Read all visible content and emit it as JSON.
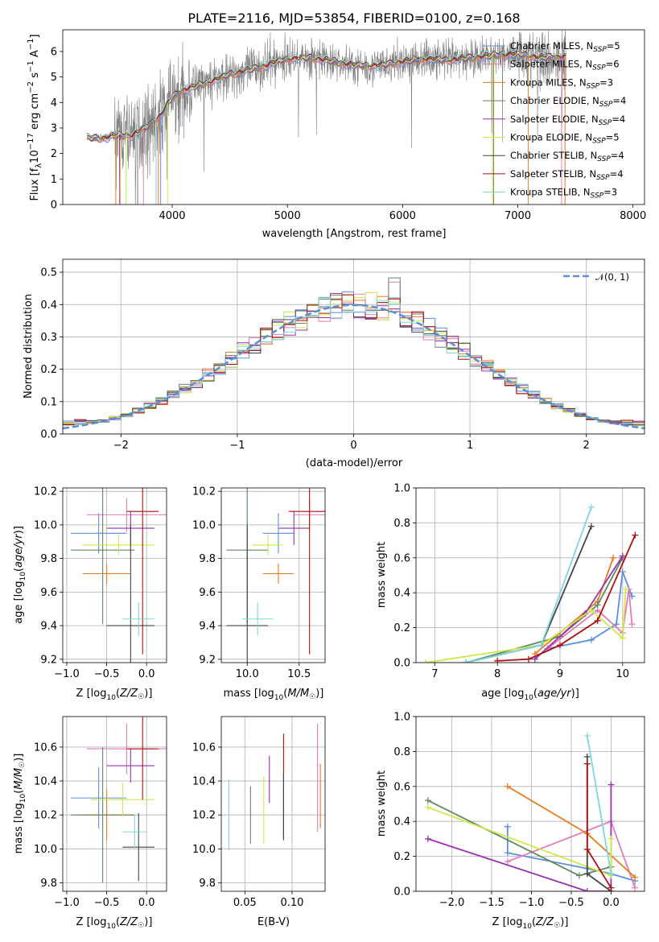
{
  "colors": {
    "Chabrier MILES": "#5b8ee0",
    "Salpeter MILES": "#e57ab8",
    "Kroupa MILES": "#e67e22",
    "Chabrier ELODIE": "#5f8a5f",
    "Salpeter ELODIE": "#9b30b0",
    "Kroupa ELODIE": "#cde84a",
    "Chabrier STELIB": "#444444",
    "Salpeter STELIB": "#b01010",
    "Kroupa STELIB": "#7dd8dc",
    "data": "#808080"
  },
  "chart_data": [
    {
      "type": "line",
      "title": "PLATE=2116, MJD=53854, FIBERID=0100, z=0.168",
      "xlabel": "wavelength [Angstrom, rest frame]",
      "ylabel": "Flux [f_λ 10^-17 erg cm^-2 s^-1 A^-1]",
      "xlim": [
        3050,
        8100
      ],
      "ylim": [
        0,
        6.85
      ],
      "xticks": [
        4000,
        5000,
        6000,
        7000,
        8000
      ],
      "yticks": [
        0,
        1,
        2,
        3,
        4,
        5,
        6
      ],
      "grid": false,
      "legend_position": "right",
      "legend": [
        {
          "model": "Chabrier MILES",
          "label": "Chabrier MILES, N_SSP=5"
        },
        {
          "model": "Salpeter MILES",
          "label": "Salpeter MILES, N_SSP=6"
        },
        {
          "model": "Kroupa MILES",
          "label": "Kroupa MILES, N_SSP=3"
        },
        {
          "model": "Chabrier ELODIE",
          "label": "Chabrier ELODIE, N_SSP=4"
        },
        {
          "model": "Salpeter ELODIE",
          "label": "Salpeter ELODIE, N_SSP=4"
        },
        {
          "model": "Kroupa ELODIE",
          "label": "Kroupa ELODIE, N_SSP=5"
        },
        {
          "model": "Chabrier STELIB",
          "label": "Chabrier STELIB, N_SSP=4"
        },
        {
          "model": "Salpeter STELIB",
          "label": "Salpeter STELIB, N_SSP=4"
        },
        {
          "model": "Kroupa STELIB",
          "label": "Kroupa STELIB, N_SSP=3"
        }
      ],
      "continuum": [
        [
          3260,
          2.6
        ],
        [
          3400,
          2.6
        ],
        [
          3500,
          2.7
        ],
        [
          3650,
          2.7
        ],
        [
          3800,
          3.1
        ],
        [
          3900,
          3.5
        ],
        [
          4000,
          4.2
        ],
        [
          4100,
          4.5
        ],
        [
          4300,
          4.75
        ],
        [
          4500,
          5.1
        ],
        [
          4700,
          5.3
        ],
        [
          4850,
          5.5
        ],
        [
          5000,
          5.7
        ],
        [
          5200,
          5.75
        ],
        [
          5400,
          5.6
        ],
        [
          5600,
          5.45
        ],
        [
          5800,
          5.45
        ],
        [
          6000,
          5.6
        ],
        [
          6200,
          5.7
        ],
        [
          6400,
          5.65
        ],
        [
          6600,
          5.75
        ],
        [
          6800,
          5.85
        ],
        [
          7000,
          5.9
        ],
        [
          7200,
          5.75
        ],
        [
          7420,
          5.8
        ]
      ]
    },
    {
      "type": "area",
      "xlabel": "(data-model)/error",
      "ylabel": "Normed distribution",
      "xlim": [
        -2.5,
        2.5
      ],
      "ylim": [
        0,
        0.54
      ],
      "xticks": [
        -2,
        -1,
        0,
        1,
        2
      ],
      "yticks": [
        0.0,
        0.1,
        0.2,
        0.3,
        0.4,
        0.5
      ],
      "grid": true,
      "legend_position": "top-right",
      "gaussian_label": "𝒩(0, 1)",
      "bin_width": 0.1
    },
    {
      "type": "scatter",
      "xlabel": "Z [log10(Z/Z☉)]",
      "ylabel": "age [log10(age/yr)]",
      "xlim": [
        -1.05,
        0.25
      ],
      "ylim": [
        9.18,
        10.22
      ],
      "xticks": [
        -1.0,
        -0.5,
        0.0
      ],
      "yticks": [
        9.2,
        9.4,
        9.6,
        9.8,
        10.0,
        10.2
      ],
      "grid": true,
      "points": [
        {
          "model": "Chabrier MILES",
          "x": -0.6,
          "xerr": 0.35,
          "y": 9.95,
          "yerr": 0.12
        },
        {
          "model": "Salpeter MILES",
          "x": -0.25,
          "xerr": 0.5,
          "y": 10.06,
          "yerr": 0.1
        },
        {
          "model": "Kroupa MILES",
          "x": -0.5,
          "xerr": 0.3,
          "y": 9.71,
          "yerr": 0.06
        },
        {
          "model": "Chabrier ELODIE",
          "x": -0.55,
          "xerr": 0.4,
          "y": 9.85,
          "yerr": 0.44
        },
        {
          "model": "Salpeter ELODIE",
          "x": -0.2,
          "xerr": 0.3,
          "y": 9.98,
          "yerr": 0.1
        },
        {
          "model": "Kroupa ELODIE",
          "x": -0.35,
          "xerr": 0.45,
          "y": 9.88,
          "yerr": 0.06
        },
        {
          "model": "Chabrier STELIB",
          "x": -0.2,
          "xerr": 0.3,
          "y": 9.4,
          "yerr": 0.6
        },
        {
          "model": "Salpeter STELIB",
          "x": -0.05,
          "xerr": 0.2,
          "y": 10.08,
          "yerr": 0.85
        },
        {
          "model": "Kroupa STELIB",
          "x": -0.1,
          "xerr": 0.2,
          "y": 9.44,
          "yerr": 0.1
        }
      ]
    },
    {
      "type": "scatter",
      "xlabel": "mass [log10(M/M☉)]",
      "ylabel": "",
      "xlim": [
        9.75,
        10.75
      ],
      "ylim": [
        9.18,
        10.22
      ],
      "xticks": [
        10.0,
        10.5
      ],
      "yticks": [
        9.2,
        9.4,
        9.6,
        9.8,
        10.0,
        10.2
      ],
      "grid": true,
      "points": [
        {
          "model": "Chabrier MILES",
          "x": 10.3,
          "xerr": 0.15,
          "y": 9.95,
          "yerr": 0.12
        },
        {
          "model": "Salpeter MILES",
          "x": 10.6,
          "xerr": 0.15,
          "y": 10.06,
          "yerr": 0.1
        },
        {
          "model": "Kroupa MILES",
          "x": 10.3,
          "xerr": 0.15,
          "y": 9.71,
          "yerr": 0.06
        },
        {
          "model": "Chabrier ELODIE",
          "x": 10.0,
          "xerr": 0.2,
          "y": 9.85,
          "yerr": 0.44
        },
        {
          "model": "Salpeter ELODIE",
          "x": 10.45,
          "xerr": 0.15,
          "y": 9.98,
          "yerr": 0.1
        },
        {
          "model": "Kroupa ELODIE",
          "x": 10.2,
          "xerr": 0.15,
          "y": 9.88,
          "yerr": 0.06
        },
        {
          "model": "Chabrier STELIB",
          "x": 10.0,
          "xerr": 0.2,
          "y": 9.4,
          "yerr": 0.6
        },
        {
          "model": "Salpeter STELIB",
          "x": 10.6,
          "xerr": 0.2,
          "y": 10.08,
          "yerr": 0.85
        },
        {
          "model": "Kroupa STELIB",
          "x": 10.1,
          "xerr": 0.15,
          "y": 9.44,
          "yerr": 0.1
        }
      ]
    },
    {
      "type": "line",
      "xlabel": "age [log10(age/yr)]",
      "ylabel": "mass weight",
      "xlim": [
        6.7,
        10.35
      ],
      "ylim": [
        0,
        1.0
      ],
      "xticks": [
        7,
        8,
        9,
        10
      ],
      "yticks": [
        0.0,
        0.2,
        0.4,
        0.6,
        0.8,
        1.0
      ],
      "grid": true,
      "series": [
        {
          "model": "Chabrier MILES",
          "x": [
            8.8,
            9.5,
            9.9,
            10.0,
            10.15
          ],
          "y": [
            0.08,
            0.13,
            0.22,
            0.52,
            0.38
          ]
        },
        {
          "model": "Salpeter MILES",
          "x": [
            8.8,
            9.6,
            10.0,
            10.1,
            10.15
          ],
          "y": [
            0.08,
            0.3,
            0.17,
            0.42,
            0.22
          ]
        },
        {
          "model": "Kroupa MILES",
          "x": [
            8.6,
            9.6,
            9.85
          ],
          "y": [
            0.05,
            0.35,
            0.6
          ]
        },
        {
          "model": "Chabrier ELODIE",
          "x": [
            7.5,
            9.0,
            9.6,
            10.0
          ],
          "y": [
            0.0,
            0.15,
            0.33,
            0.6
          ]
        },
        {
          "model": "Salpeter ELODIE",
          "x": [
            8.6,
            9.4,
            10.0
          ],
          "y": [
            0.02,
            0.28,
            0.61
          ]
        },
        {
          "model": "Kroupa ELODIE",
          "x": [
            6.85,
            8.7,
            9.5,
            10.0,
            10.05
          ],
          "y": [
            0.0,
            0.1,
            0.3,
            0.14,
            0.42
          ]
        },
        {
          "model": "Chabrier STELIB",
          "x": [
            7.5,
            8.7,
            9.5
          ],
          "y": [
            0.0,
            0.1,
            0.78
          ]
        },
        {
          "model": "Salpeter STELIB",
          "x": [
            8.0,
            8.5,
            9.0,
            9.6,
            10.2
          ],
          "y": [
            0.01,
            0.02,
            0.1,
            0.24,
            0.73
          ]
        },
        {
          "model": "Kroupa STELIB",
          "x": [
            7.5,
            8.7,
            9.5
          ],
          "y": [
            0.0,
            0.1,
            0.89
          ]
        }
      ]
    },
    {
      "type": "scatter",
      "xlabel": "Z [log10(Z/Z☉)]",
      "ylabel": "mass [log10(M/M☉)]",
      "xlim": [
        -1.05,
        0.25
      ],
      "ylim": [
        9.75,
        10.78
      ],
      "xticks": [
        -1.0,
        -0.5,
        0.0
      ],
      "yticks": [
        9.8,
        10.0,
        10.2,
        10.4,
        10.6
      ],
      "grid": true,
      "points": [
        {
          "model": "Chabrier MILES",
          "x": -0.6,
          "xerr": 0.35,
          "y": 10.3,
          "yerr": 0.18
        },
        {
          "model": "Salpeter MILES",
          "x": -0.25,
          "xerr": 0.5,
          "y": 10.59,
          "yerr": 0.15
        },
        {
          "model": "Kroupa MILES",
          "x": -0.5,
          "xerr": 0.35,
          "y": 10.2,
          "yerr": 0.15
        },
        {
          "model": "Chabrier ELODIE",
          "x": -0.55,
          "xerr": 0.4,
          "y": 10.2,
          "yerr": 0.4
        },
        {
          "model": "Salpeter ELODIE",
          "x": -0.2,
          "xerr": 0.3,
          "y": 10.49,
          "yerr": 0.1
        },
        {
          "model": "Kroupa ELODIE",
          "x": -0.3,
          "xerr": 0.4,
          "y": 10.29,
          "yerr": 0.1
        },
        {
          "model": "Chabrier STELIB",
          "x": -0.1,
          "xerr": 0.2,
          "y": 10.01,
          "yerr": 0.2
        },
        {
          "model": "Salpeter STELIB",
          "x": -0.05,
          "xerr": 0.2,
          "y": 10.59,
          "yerr": 0.3
        },
        {
          "model": "Kroupa STELIB",
          "x": -0.15,
          "xerr": 0.15,
          "y": 10.1,
          "yerr": 0.1
        }
      ]
    },
    {
      "type": "scatter",
      "xlabel": "E(B-V)",
      "ylabel": "",
      "xlim": [
        0.025,
        0.135
      ],
      "ylim": [
        9.75,
        10.78
      ],
      "xticks": [
        0.05,
        0.1
      ],
      "yticks": [
        9.8,
        10.0,
        10.2,
        10.4,
        10.6
      ],
      "grid": true,
      "points": [
        {
          "model": "Kroupa STELIB",
          "x": 0.033,
          "y": 10.2,
          "yerr": 0.21
        },
        {
          "model": "Chabrier ELODIE",
          "x": 0.056,
          "y": 10.2,
          "yerr": 0.17
        },
        {
          "model": "Kroupa ELODIE",
          "x": 0.07,
          "y": 10.23,
          "yerr": 0.2
        },
        {
          "model": "Salpeter ELODIE",
          "x": 0.076,
          "y": 10.41,
          "yerr": 0.14
        },
        {
          "model": "Salpeter STELIB",
          "x": 0.091,
          "y": 10.37,
          "yerr": 0.31
        },
        {
          "model": "Chabrier STELIB",
          "x": 0.091,
          "y": 10.25,
          "yerr": 0.2
        },
        {
          "model": "Salpeter MILES",
          "x": 0.127,
          "y": 10.42,
          "yerr": 0.32
        },
        {
          "model": "Kroupa MILES",
          "x": 0.13,
          "y": 10.31,
          "yerr": 0.19
        }
      ]
    },
    {
      "type": "line",
      "xlabel": "Z [log10(Z/Z☉)]",
      "ylabel": "mass weight",
      "xlim": [
        -2.45,
        0.42
      ],
      "ylim": [
        0,
        1.0
      ],
      "xticks": [
        -2.0,
        -1.5,
        -1.0,
        -0.5,
        0.0
      ],
      "yticks": [
        0.0,
        0.2,
        0.4,
        0.6,
        0.8,
        1.0
      ],
      "grid": true,
      "series": [
        {
          "model": "Chabrier MILES",
          "x": [
            -1.3,
            -1.3,
            -0.3,
            0.0,
            0.3
          ],
          "y": [
            0.37,
            0.22,
            0.13,
            0.1,
            0.06
          ]
        },
        {
          "model": "Salpeter MILES",
          "x": [
            -1.3,
            0.0,
            0.3
          ],
          "y": [
            0.17,
            0.4,
            0.02
          ]
        },
        {
          "model": "Kroupa MILES",
          "x": [
            -1.3,
            -0.3,
            0.3
          ],
          "y": [
            0.6,
            0.33,
            0.08
          ]
        },
        {
          "model": "Chabrier ELODIE",
          "x": [
            -2.3,
            -0.4,
            0.0
          ],
          "y": [
            0.52,
            0.09,
            0.14
          ]
        },
        {
          "model": "Salpeter ELODIE",
          "x": [
            -2.3,
            -0.3,
            0.0,
            0.0
          ],
          "y": [
            0.3,
            0.0,
            0.0,
            0.61
          ]
        },
        {
          "model": "Kroupa ELODIE",
          "x": [
            -2.3,
            0.0,
            0.0
          ],
          "y": [
            0.48,
            0.09,
            0.3
          ]
        },
        {
          "model": "Chabrier STELIB",
          "x": [
            -0.3,
            -0.3,
            0.0
          ],
          "y": [
            0.77,
            0.1,
            0.0
          ]
        },
        {
          "model": "Salpeter STELIB",
          "x": [
            -0.3,
            -0.3,
            0.0
          ],
          "y": [
            0.73,
            0.24,
            0.02
          ]
        },
        {
          "model": "Kroupa STELIB",
          "x": [
            -0.3,
            0.0
          ],
          "y": [
            0.89,
            0.1
          ]
        }
      ]
    }
  ]
}
